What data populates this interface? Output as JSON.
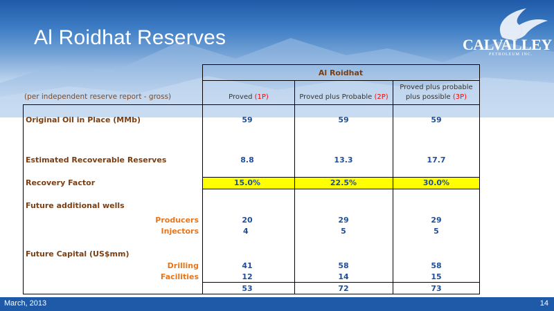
{
  "slide": {
    "title": "Al Roidhat Reserves",
    "logo": {
      "name": "CALVALLEY",
      "sub": "PETROLEUM INC."
    }
  },
  "table": {
    "group_header": "Al Roidhat",
    "note": "(per independent reserve report - gross)",
    "columns": [
      {
        "label": "Proved ",
        "code": "(1P)"
      },
      {
        "label": "Proved plus Probable ",
        "code": "(2P)"
      },
      {
        "label_line1": "Proved plus probable",
        "label_line2": "plus possible ",
        "code": "(3P)"
      }
    ],
    "rows": {
      "ooip": {
        "label": "Original Oil in Place (MMb)",
        "values": [
          "59",
          "59",
          "59"
        ]
      },
      "err": {
        "label": "Estimated Recoverable Reserves",
        "values": [
          "8.8",
          "13.3",
          "17.7"
        ]
      },
      "rf": {
        "label": "Recovery Factor",
        "values": [
          "15.0%",
          "22.5%",
          "30.0%"
        ]
      },
      "wells": {
        "label": "Future additional wells",
        "producers": {
          "label": "Producers",
          "values": [
            "20",
            "29",
            "29"
          ]
        },
        "injectors": {
          "label": "Injectors",
          "values": [
            "4",
            "5",
            "5"
          ]
        }
      },
      "capital": {
        "label": "Future Capital (US$mm)",
        "drilling": {
          "label": "Drilling",
          "values": [
            "41",
            "58",
            "58"
          ]
        },
        "facilities": {
          "label": "Facilities",
          "values": [
            "12",
            "14",
            "15"
          ]
        },
        "total": {
          "values": [
            "53",
            "72",
            "73"
          ]
        }
      }
    }
  },
  "footer": {
    "date": "March, 2013",
    "page": "14"
  }
}
